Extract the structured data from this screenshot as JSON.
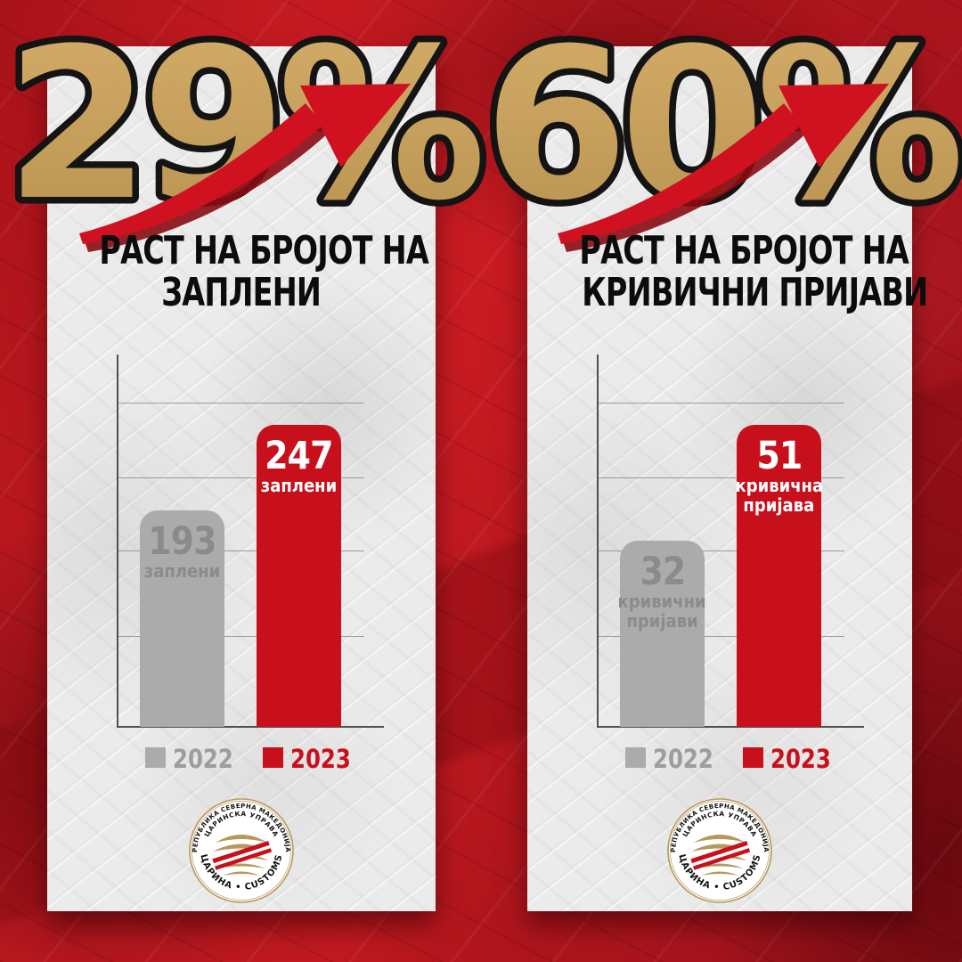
{
  "colors": {
    "accent_red": "#c8101c",
    "arrow_red": "#cf1120",
    "arrow_shadow": "#8a0c13",
    "gold": "#c2a05e",
    "bar_gray": "#ababab",
    "gray_label": "#8b8b8b",
    "legend_gray_text": "#9d9d9d",
    "panel_bg": "#ecebeb",
    "background_red": "#b01620"
  },
  "panels": [
    {
      "percent": "29%",
      "title_lines": [
        "РАСТ НА БРОЈОТ НА",
        "ЗАПЛЕНИ"
      ],
      "bars": [
        {
          "year": "2022",
          "value": "193",
          "unit_lines": [
            "заплени",
            ""
          ],
          "color": "#ababab",
          "label_color": "#8b8b8b"
        },
        {
          "year": "2023",
          "value": "247",
          "unit_lines": [
            "заплени",
            ""
          ],
          "color": "#c8101c",
          "label_color": "#ffffff"
        }
      ],
      "legend": [
        {
          "label": "2022",
          "swatch": "#ababab",
          "text_color": "#9d9d9d"
        },
        {
          "label": "2023",
          "swatch": "#c8101c",
          "text_color": "#c8101c"
        }
      ]
    },
    {
      "percent": "60%",
      "title_lines": [
        "РАСТ НА БРОЈОТ НА",
        "КРИВИЧНИ ПРИЈАВИ"
      ],
      "bars": [
        {
          "year": "2022",
          "value": "32",
          "unit_lines": [
            "кривични",
            "пријави"
          ],
          "color": "#ababab",
          "label_color": "#8b8b8b"
        },
        {
          "year": "2023",
          "value": "51",
          "unit_lines": [
            "кривична",
            "пријава"
          ],
          "color": "#c8101c",
          "label_color": "#ffffff"
        }
      ],
      "legend": [
        {
          "label": "2022",
          "swatch": "#ababab",
          "text_color": "#9d9d9d"
        },
        {
          "label": "2023",
          "swatch": "#c8101c",
          "text_color": "#c8101c"
        }
      ]
    }
  ],
  "logo": {
    "arc_top": "РЕПУБЛИКА СЕВЕРНА МАКЕДОНИЈА",
    "arc_mid": "ЦАРИНСКА УПРАВА",
    "arc_bottom": "ЦАРИНА • CUSTOMS"
  },
  "chart_data": [
    {
      "type": "bar",
      "title": "РАСТ НА БРОЈОТ НА ЗАПЛЕНИ",
      "growth_annotation": "29%",
      "categories": [
        "2022",
        "2023"
      ],
      "values": [
        193,
        247
      ],
      "value_labels": [
        "193 заплени",
        "247 заплени"
      ],
      "bar_colors": [
        "#ababab",
        "#c8101c"
      ],
      "xlabel": "",
      "ylabel": "",
      "grid": true,
      "legend_position": "bottom"
    },
    {
      "type": "bar",
      "title": "РАСТ НА БРОЈОТ НА КРИВИЧНИ ПРИЈАВИ",
      "growth_annotation": "60%",
      "categories": [
        "2022",
        "2023"
      ],
      "values": [
        32,
        51
      ],
      "value_labels": [
        "32 кривични пријави",
        "51 кривична пријава"
      ],
      "bar_colors": [
        "#ababab",
        "#c8101c"
      ],
      "xlabel": "",
      "ylabel": "",
      "grid": true,
      "legend_position": "bottom"
    }
  ]
}
